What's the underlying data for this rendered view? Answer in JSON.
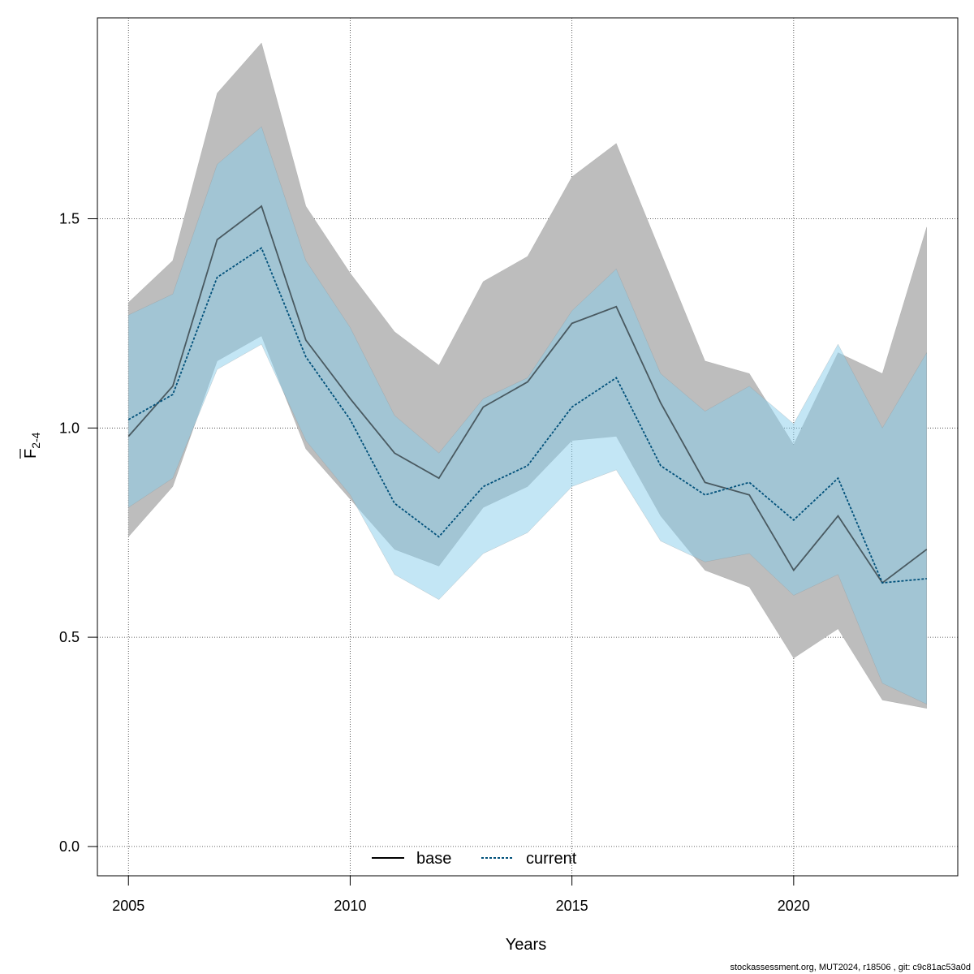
{
  "chart_data": {
    "type": "line",
    "title": "",
    "xlabel": "Years",
    "ylabel": "F",
    "ylabel_bar": true,
    "ylabel_subscript": "2-4",
    "xlim": [
      2004.3,
      2023.7
    ],
    "ylim": [
      -0.07,
      1.98
    ],
    "xticks": [
      2005,
      2010,
      2015,
      2020
    ],
    "yticks": [
      0.0,
      0.5,
      1.0,
      1.5
    ],
    "ytick_labels": [
      "0.0",
      "0.5",
      "1.0",
      "1.5"
    ],
    "grid": true,
    "legend": {
      "placement": "bottom",
      "entries": [
        {
          "name": "base",
          "style": "solid",
          "color": "#000000"
        },
        {
          "name": "current",
          "style": "dotted",
          "color": "#00507a"
        }
      ]
    },
    "x": [
      2005,
      2006,
      2007,
      2008,
      2009,
      2010,
      2011,
      2012,
      2013,
      2014,
      2015,
      2016,
      2017,
      2018,
      2019,
      2020,
      2021,
      2022,
      2023
    ],
    "series": [
      {
        "name": "base",
        "color": "#000000",
        "band_color": "#bdbdbd",
        "line_style": "solid",
        "values": [
          0.98,
          1.1,
          1.45,
          1.53,
          1.21,
          1.07,
          0.94,
          0.88,
          1.05,
          1.11,
          1.25,
          1.29,
          1.06,
          0.87,
          0.84,
          0.66,
          0.79,
          0.63,
          0.71
        ],
        "lower": [
          0.74,
          0.86,
          1.16,
          1.22,
          0.95,
          0.83,
          0.71,
          0.67,
          0.81,
          0.86,
          0.97,
          0.98,
          0.79,
          0.66,
          0.62,
          0.45,
          0.52,
          0.35,
          0.33
        ],
        "upper": [
          1.3,
          1.4,
          1.8,
          1.92,
          1.53,
          1.37,
          1.23,
          1.15,
          1.35,
          1.41,
          1.6,
          1.68,
          1.42,
          1.16,
          1.13,
          0.96,
          1.18,
          1.13,
          1.48
        ]
      },
      {
        "name": "current",
        "color": "#00507a",
        "band_color": "#87ceeb",
        "line_style": "dotted",
        "values": [
          1.02,
          1.08,
          1.36,
          1.43,
          1.17,
          1.02,
          0.82,
          0.74,
          0.86,
          0.91,
          1.05,
          1.12,
          0.91,
          0.84,
          0.87,
          0.78,
          0.88,
          0.63,
          0.64
        ],
        "lower": [
          0.81,
          0.88,
          1.14,
          1.2,
          0.97,
          0.84,
          0.65,
          0.59,
          0.7,
          0.75,
          0.86,
          0.9,
          0.73,
          0.68,
          0.7,
          0.6,
          0.65,
          0.39,
          0.34
        ],
        "upper": [
          1.27,
          1.32,
          1.63,
          1.72,
          1.4,
          1.24,
          1.03,
          0.94,
          1.07,
          1.12,
          1.28,
          1.38,
          1.13,
          1.04,
          1.1,
          1.01,
          1.2,
          1.0,
          1.18
        ]
      }
    ]
  },
  "footer": {
    "text": "stockassessment.org, MUT2024, r18506 , git: c9c81ac53a0d"
  }
}
